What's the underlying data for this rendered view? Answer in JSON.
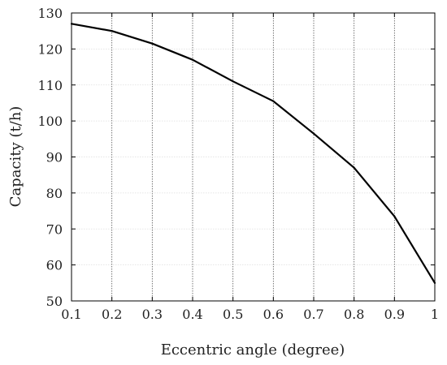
{
  "chart_data": {
    "type": "line",
    "title": "",
    "xlabel": "Eccentric angle (degree)",
    "ylabel": "Capacity (t/h)",
    "xlim": [
      0.1,
      1.0
    ],
    "ylim": [
      50,
      130
    ],
    "grid": true,
    "x_ticks": [
      0.1,
      0.2,
      0.3,
      0.4,
      0.5,
      0.6,
      0.7,
      0.8,
      0.9,
      1.0
    ],
    "x_tick_labels": [
      "0.1",
      "0.2",
      "0.3",
      "0.4",
      "0.5",
      "0.6",
      "0.7",
      "0.8",
      "0.9",
      "1"
    ],
    "y_ticks": [
      50,
      60,
      70,
      80,
      90,
      100,
      110,
      120,
      130
    ],
    "y_tick_labels": [
      "50",
      "60",
      "70",
      "80",
      "90",
      "100",
      "110",
      "120",
      "130"
    ],
    "series": [
      {
        "color": "#000000",
        "x": [
          0.1,
          0.2,
          0.3,
          0.4,
          0.5,
          0.6,
          0.7,
          0.8,
          0.9,
          1.0
        ],
        "y": [
          127,
          125,
          121.5,
          117,
          111,
          105.5,
          96.5,
          87,
          73.5,
          55
        ]
      }
    ]
  }
}
